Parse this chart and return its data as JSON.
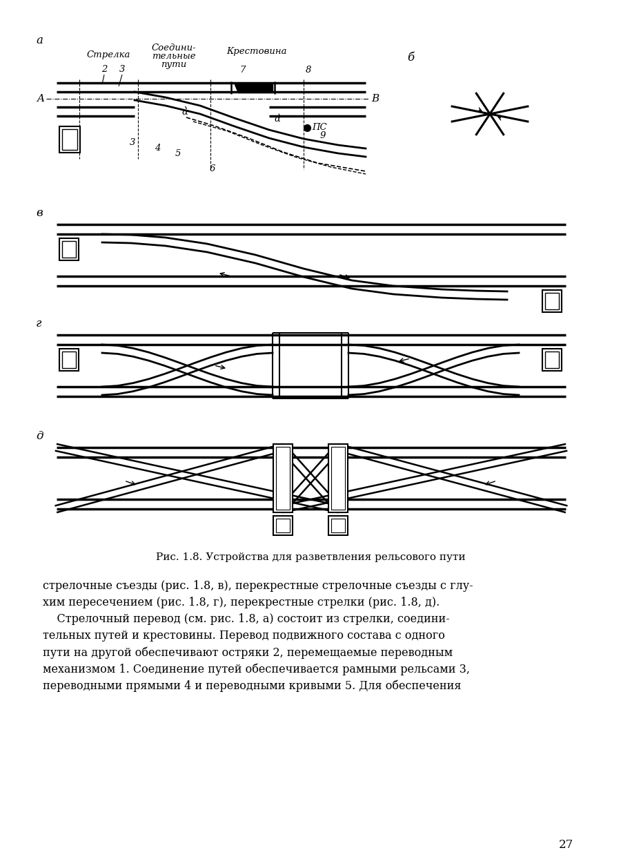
{
  "background_color": "#ffffff",
  "fig_caption": "Рис. 1.8. Устройства для разветвления рельсового пути",
  "body_text_lines": [
    "стрелочные съезды (рис. 1.8, в), перекрестные стрелочные съезды с глу-",
    "хим пересечением (рис. 1.8, г), перекрестные стрелки (рис. 1.8, д).",
    "    Стрелочный перевод (см. рис. 1.8, а) состоит из стрелки, соедини-",
    "тельных путей и крестовины. Перевод подвижного состава с одного",
    "пути на другой обеспечивают остряки 2, перемещаемые переводным",
    "механизмом 1. Соединение путей обеспечивается рамными рельсами 3,",
    "переводными прямыми 4 и переводными кривыми 5. Для обеспечения"
  ],
  "page_number": "27"
}
